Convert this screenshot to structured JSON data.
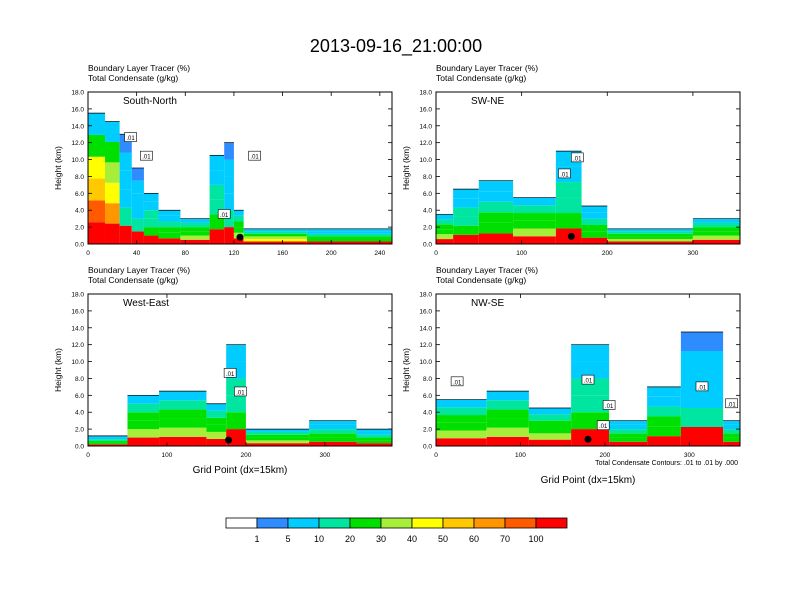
{
  "figure": {
    "title": "2013-09-16_21:00:00",
    "contour_note": "Total Condensate Contours: .01 to .01 by .000"
  },
  "chart_data": [
    {
      "type": "heatmap",
      "panel": "South-North",
      "header_line1": "Boundary Layer Tracer    (%)",
      "header_line2": "Total Condensate    (g/kg)",
      "ylabel": "Height (km)",
      "xlabel": "",
      "xlim": [
        0,
        250
      ],
      "ylim": [
        0,
        18
      ],
      "xticks": [
        0,
        40,
        80,
        120,
        160,
        200,
        240
      ],
      "yticks": [
        "0.0",
        "2.0",
        "4.0",
        "6.0",
        "8.0",
        "10.0",
        "12.0",
        "14.0",
        "16.0",
        "18.0"
      ],
      "contour_labels": [
        {
          "x": 35,
          "y": 12.6,
          "text": ".01"
        },
        {
          "x": 48,
          "y": 10.4,
          "text": ".01"
        },
        {
          "x": 112,
          "y": 3.5,
          "text": ".01"
        },
        {
          "x": 137,
          "y": 10.4,
          "text": ".01"
        }
      ],
      "marker": {
        "x": 125,
        "y": 0.8
      },
      "columns": [
        {
          "x0": 0,
          "x1": 14,
          "top": 15.5,
          "int": 95
        },
        {
          "x0": 14,
          "x1": 26,
          "top": 14.5,
          "int": 85
        },
        {
          "x0": 26,
          "x1": 36,
          "top": 13.0,
          "int": 30
        },
        {
          "x0": 36,
          "x1": 46,
          "top": 9.0,
          "int": 25
        },
        {
          "x0": 46,
          "x1": 58,
          "top": 6.0,
          "int": 35
        },
        {
          "x0": 58,
          "x1": 76,
          "top": 4.0,
          "int": 45
        },
        {
          "x0": 76,
          "x1": 100,
          "top": 3.0,
          "int": 55
        },
        {
          "x0": 100,
          "x1": 112,
          "top": 10.5,
          "int": 35
        },
        {
          "x0": 112,
          "x1": 120,
          "top": 12.0,
          "int": 30
        },
        {
          "x0": 120,
          "x1": 128,
          "top": 4.0,
          "int": 60
        },
        {
          "x0": 128,
          "x1": 180,
          "top": 1.8,
          "int": 70
        },
        {
          "x0": 180,
          "x1": 252,
          "top": 1.8,
          "int": 50
        }
      ]
    },
    {
      "type": "heatmap",
      "panel": "SW-NE",
      "header_line1": "Boundary Layer Tracer    (%)",
      "header_line2": "Total Condensate    (g/kg)",
      "ylabel": "Height (km)",
      "xlabel": "",
      "xlim": [
        0,
        355
      ],
      "ylim": [
        0,
        18
      ],
      "xticks": [
        0,
        100,
        200,
        300
      ],
      "yticks": [
        "0.0",
        "2.0",
        "4.0",
        "6.0",
        "8.0",
        "10.0",
        "12.0",
        "14.0",
        "16.0",
        "18.0"
      ],
      "contour_labels": [
        {
          "x": 150,
          "y": 8.3,
          "text": ".01"
        },
        {
          "x": 165,
          "y": 10.2,
          "text": ".01"
        }
      ],
      "marker": {
        "x": 158,
        "y": 0.9
      },
      "columns": [
        {
          "x0": 0,
          "x1": 20,
          "top": 3.5,
          "int": 60
        },
        {
          "x0": 20,
          "x1": 50,
          "top": 6.5,
          "int": 40
        },
        {
          "x0": 50,
          "x1": 90,
          "top": 7.5,
          "int": 45
        },
        {
          "x0": 90,
          "x1": 140,
          "top": 5.5,
          "int": 55
        },
        {
          "x0": 140,
          "x1": 170,
          "top": 11.0,
          "int": 35
        },
        {
          "x0": 170,
          "x1": 200,
          "top": 4.5,
          "int": 45
        },
        {
          "x0": 200,
          "x1": 300,
          "top": 1.8,
          "int": 60
        },
        {
          "x0": 300,
          "x1": 355,
          "top": 3.0,
          "int": 55
        }
      ]
    },
    {
      "type": "heatmap",
      "panel": "West-East",
      "header_line1": "Boundary Layer Tracer    (%)",
      "header_line2": "Total Condensate    (g/kg)",
      "ylabel": "Height (km)",
      "xlabel": "Grid Point (dx=15km)",
      "xlim": [
        0,
        385
      ],
      "ylim": [
        0,
        18
      ],
      "xticks": [
        0,
        100,
        200,
        300
      ],
      "yticks": [
        "0.0",
        "2.0",
        "4.0",
        "6.0",
        "8.0",
        "10.0",
        "12.0",
        "14.0",
        "16.0",
        "18.0"
      ],
      "contour_labels": [
        {
          "x": 180,
          "y": 8.6,
          "text": ".01"
        },
        {
          "x": 193,
          "y": 6.4,
          "text": ".01"
        }
      ],
      "marker": {
        "x": 178,
        "y": 0.7
      },
      "columns": [
        {
          "x0": 0,
          "x1": 50,
          "top": 1.2,
          "int": 50
        },
        {
          "x0": 50,
          "x1": 90,
          "top": 6.0,
          "int": 55
        },
        {
          "x0": 90,
          "x1": 150,
          "top": 6.5,
          "int": 60
        },
        {
          "x0": 150,
          "x1": 175,
          "top": 5.0,
          "int": 55
        },
        {
          "x0": 175,
          "x1": 200,
          "top": 12.0,
          "int": 35
        },
        {
          "x0": 200,
          "x1": 280,
          "top": 2.0,
          "int": 55
        },
        {
          "x0": 280,
          "x1": 340,
          "top": 3.0,
          "int": 50
        },
        {
          "x0": 340,
          "x1": 385,
          "top": 2.0,
          "int": 45
        }
      ]
    },
    {
      "type": "heatmap",
      "panel": "NW-SE",
      "header_line1": "Boundary Layer Tracer    (%)",
      "header_line2": "Total Condensate    (g/kg)",
      "ylabel": "Height (km)",
      "xlabel": "Grid Point (dx=15km)",
      "xlim": [
        0,
        360
      ],
      "ylim": [
        0,
        18
      ],
      "xticks": [
        0,
        100,
        200,
        300
      ],
      "yticks": [
        "0.0",
        "2.0",
        "4.0",
        "6.0",
        "8.0",
        "10.0",
        "12.0",
        "14.0",
        "16.0",
        "18.0"
      ],
      "contour_labels": [
        {
          "x": 25,
          "y": 7.6,
          "text": ".01"
        },
        {
          "x": 180,
          "y": 7.8,
          "text": ".01"
        },
        {
          "x": 205,
          "y": 4.8,
          "text": ".01"
        },
        {
          "x": 198,
          "y": 2.4,
          "text": ".01"
        },
        {
          "x": 315,
          "y": 7.0,
          "text": ".01"
        },
        {
          "x": 350,
          "y": 5.0,
          "text": ".01"
        }
      ],
      "marker": {
        "x": 180,
        "y": 0.8
      },
      "columns": [
        {
          "x0": 0,
          "x1": 60,
          "top": 5.5,
          "int": 55
        },
        {
          "x0": 60,
          "x1": 110,
          "top": 6.5,
          "int": 60
        },
        {
          "x0": 110,
          "x1": 160,
          "top": 4.5,
          "int": 55
        },
        {
          "x0": 160,
          "x1": 205,
          "top": 12.0,
          "int": 35
        },
        {
          "x0": 205,
          "x1": 250,
          "top": 3.0,
          "int": 50
        },
        {
          "x0": 250,
          "x1": 290,
          "top": 7.0,
          "int": 45
        },
        {
          "x0": 290,
          "x1": 340,
          "top": 13.5,
          "int": 30
        },
        {
          "x0": 340,
          "x1": 360,
          "top": 3.0,
          "int": 50
        }
      ]
    }
  ],
  "colorbar": {
    "colors": [
      "#ffffff",
      "#2f8cff",
      "#00ccff",
      "#00e6a0",
      "#00e000",
      "#a6ee3a",
      "#ffff00",
      "#ffc800",
      "#ff9600",
      "#ff5a00",
      "#ff0000"
    ],
    "labels": [
      "1",
      "5",
      "10",
      "20",
      "30",
      "40",
      "50",
      "60",
      "70",
      "100"
    ]
  }
}
